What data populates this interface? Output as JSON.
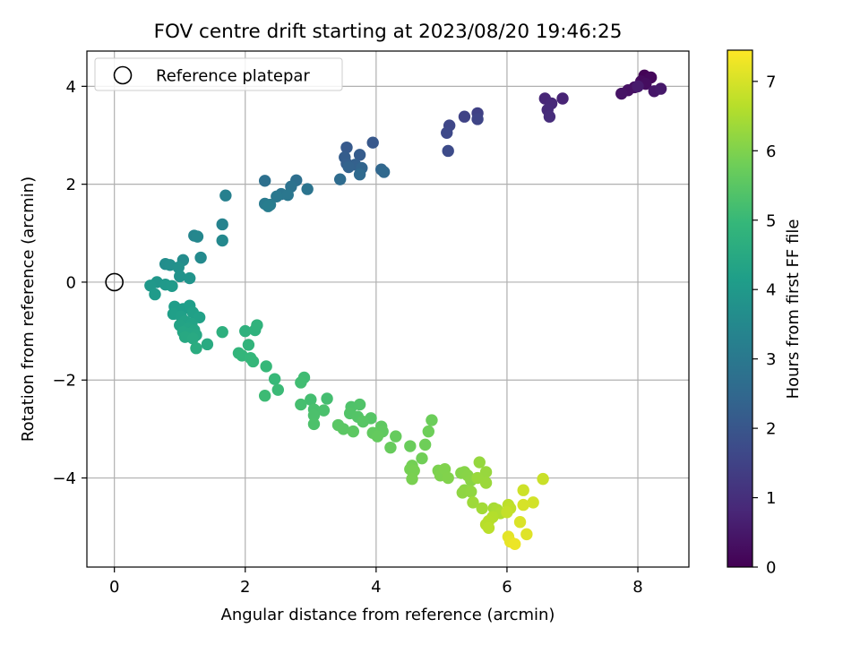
{
  "chart_data": {
    "type": "scatter",
    "title": "FOV centre drift starting at 2023/08/20 19:46:25",
    "xlabel": "Angular distance from reference (arcmin)",
    "ylabel": "Rotation from reference (arcmin)",
    "xlim": [
      -0.42,
      8.78
    ],
    "ylim": [
      -5.82,
      4.72
    ],
    "xticks": [
      0,
      2,
      4,
      6,
      8
    ],
    "yticks": [
      4,
      2,
      0,
      -2,
      -4
    ],
    "xtick_labels": [
      "0",
      "2",
      "4",
      "6",
      "8"
    ],
    "ytick_labels": [
      "4",
      "2",
      "0",
      "−2",
      "−4"
    ],
    "grid": true,
    "legend": {
      "position": "top-left",
      "entries": [
        "Reference platepar"
      ]
    },
    "reference_point": {
      "x": 0,
      "y": 0
    },
    "colorbar": {
      "label": "Hours from first FF file",
      "colormap": "viridis",
      "range": [
        0,
        7.45
      ],
      "ticks": [
        0,
        1,
        2,
        3,
        4,
        5,
        6,
        7
      ],
      "tick_labels": [
        "0",
        "1",
        "2",
        "3",
        "4",
        "5",
        "6",
        "7"
      ]
    },
    "colormap_stops": [
      "#440154",
      "#482878",
      "#3e4989",
      "#31688e",
      "#26828e",
      "#1f9e89",
      "#35b779",
      "#6ece58",
      "#b5de2b",
      "#fde725"
    ],
    "points": [
      {
        "x": 8.1,
        "y": 4.22,
        "h": 0.05
      },
      {
        "x": 8.15,
        "y": 4.15,
        "h": 0.1
      },
      {
        "x": 8.2,
        "y": 4.18,
        "h": 0.15
      },
      {
        "x": 8.05,
        "y": 4.1,
        "h": 0.2
      },
      {
        "x": 8.12,
        "y": 4.05,
        "h": 0.25
      },
      {
        "x": 7.95,
        "y": 3.98,
        "h": 0.3
      },
      {
        "x": 7.85,
        "y": 3.92,
        "h": 0.35
      },
      {
        "x": 7.75,
        "y": 3.85,
        "h": 0.4
      },
      {
        "x": 8.25,
        "y": 3.9,
        "h": 0.45
      },
      {
        "x": 8.35,
        "y": 3.95,
        "h": 0.5
      },
      {
        "x": 8.0,
        "y": 4.0,
        "h": 0.55
      },
      {
        "x": 6.85,
        "y": 3.75,
        "h": 0.75
      },
      {
        "x": 6.58,
        "y": 3.75,
        "h": 0.8
      },
      {
        "x": 6.68,
        "y": 3.65,
        "h": 0.85
      },
      {
        "x": 6.62,
        "y": 3.52,
        "h": 0.9
      },
      {
        "x": 6.65,
        "y": 3.38,
        "h": 0.95
      },
      {
        "x": 5.55,
        "y": 3.45,
        "h": 1.45
      },
      {
        "x": 5.35,
        "y": 3.38,
        "h": 1.5
      },
      {
        "x": 5.55,
        "y": 3.33,
        "h": 1.55
      },
      {
        "x": 5.12,
        "y": 3.2,
        "h": 1.6
      },
      {
        "x": 5.08,
        "y": 3.05,
        "h": 1.65
      },
      {
        "x": 5.1,
        "y": 2.68,
        "h": 1.7
      },
      {
        "x": 3.95,
        "y": 2.85,
        "h": 2.05
      },
      {
        "x": 3.55,
        "y": 2.75,
        "h": 2.1
      },
      {
        "x": 3.75,
        "y": 2.6,
        "h": 2.15
      },
      {
        "x": 3.52,
        "y": 2.55,
        "h": 2.2
      },
      {
        "x": 3.55,
        "y": 2.42,
        "h": 2.25
      },
      {
        "x": 3.68,
        "y": 2.4,
        "h": 2.3
      },
      {
        "x": 3.58,
        "y": 2.35,
        "h": 2.35
      },
      {
        "x": 3.78,
        "y": 2.33,
        "h": 2.4
      },
      {
        "x": 4.08,
        "y": 2.3,
        "h": 2.45
      },
      {
        "x": 4.12,
        "y": 2.25,
        "h": 2.5
      },
      {
        "x": 3.75,
        "y": 2.2,
        "h": 2.55
      },
      {
        "x": 3.45,
        "y": 2.1,
        "h": 2.6
      },
      {
        "x": 2.78,
        "y": 2.08,
        "h": 2.7
      },
      {
        "x": 2.3,
        "y": 2.07,
        "h": 2.75
      },
      {
        "x": 2.7,
        "y": 1.95,
        "h": 2.8
      },
      {
        "x": 2.95,
        "y": 1.9,
        "h": 2.85
      },
      {
        "x": 2.55,
        "y": 1.8,
        "h": 2.9
      },
      {
        "x": 2.65,
        "y": 1.78,
        "h": 2.95
      },
      {
        "x": 2.48,
        "y": 1.75,
        "h": 3.0
      },
      {
        "x": 2.3,
        "y": 1.6,
        "h": 3.05
      },
      {
        "x": 2.38,
        "y": 1.58,
        "h": 3.1
      },
      {
        "x": 2.35,
        "y": 1.55,
        "h": 3.15
      },
      {
        "x": 1.7,
        "y": 1.77,
        "h": 3.25
      },
      {
        "x": 1.65,
        "y": 1.18,
        "h": 3.35
      },
      {
        "x": 1.22,
        "y": 0.95,
        "h": 3.4
      },
      {
        "x": 1.27,
        "y": 0.93,
        "h": 3.45
      },
      {
        "x": 1.65,
        "y": 0.85,
        "h": 3.5
      },
      {
        "x": 1.32,
        "y": 0.5,
        "h": 3.55
      },
      {
        "x": 1.05,
        "y": 0.45,
        "h": 3.6
      },
      {
        "x": 0.78,
        "y": 0.37,
        "h": 3.65
      },
      {
        "x": 0.85,
        "y": 0.35,
        "h": 3.7
      },
      {
        "x": 0.98,
        "y": 0.3,
        "h": 3.75
      },
      {
        "x": 1.0,
        "y": 0.12,
        "h": 3.8
      },
      {
        "x": 1.15,
        "y": 0.08,
        "h": 3.85
      },
      {
        "x": 0.65,
        "y": 0.0,
        "h": 3.9
      },
      {
        "x": 0.55,
        "y": -0.07,
        "h": 3.95
      },
      {
        "x": 0.78,
        "y": -0.05,
        "h": 4.0
      },
      {
        "x": 0.88,
        "y": -0.08,
        "h": 4.02
      },
      {
        "x": 0.62,
        "y": -0.25,
        "h": 4.05
      },
      {
        "x": 0.92,
        "y": -0.5,
        "h": 4.1
      },
      {
        "x": 1.05,
        "y": -0.55,
        "h": 4.12
      },
      {
        "x": 1.15,
        "y": -0.48,
        "h": 4.15
      },
      {
        "x": 0.9,
        "y": -0.65,
        "h": 4.18
      },
      {
        "x": 1.02,
        "y": -0.7,
        "h": 4.2
      },
      {
        "x": 1.2,
        "y": -0.62,
        "h": 4.22
      },
      {
        "x": 1.3,
        "y": -0.72,
        "h": 4.25
      },
      {
        "x": 1.08,
        "y": -0.8,
        "h": 4.28
      },
      {
        "x": 1.18,
        "y": -0.85,
        "h": 4.3
      },
      {
        "x": 1.0,
        "y": -0.88,
        "h": 4.32
      },
      {
        "x": 1.12,
        "y": -0.95,
        "h": 4.35
      },
      {
        "x": 1.22,
        "y": -0.98,
        "h": 4.38
      },
      {
        "x": 1.05,
        "y": -1.02,
        "h": 4.4
      },
      {
        "x": 1.15,
        "y": -1.05,
        "h": 4.42
      },
      {
        "x": 1.25,
        "y": -1.08,
        "h": 4.45
      },
      {
        "x": 1.08,
        "y": -1.12,
        "h": 4.48
      },
      {
        "x": 1.2,
        "y": -1.15,
        "h": 4.5
      },
      {
        "x": 1.42,
        "y": -1.27,
        "h": 4.55
      },
      {
        "x": 1.25,
        "y": -1.35,
        "h": 4.6
      },
      {
        "x": 1.65,
        "y": -1.02,
        "h": 4.7
      },
      {
        "x": 2.0,
        "y": -1.0,
        "h": 4.75
      },
      {
        "x": 2.15,
        "y": -0.98,
        "h": 4.78
      },
      {
        "x": 2.18,
        "y": -0.88,
        "h": 4.8
      },
      {
        "x": 2.05,
        "y": -1.28,
        "h": 4.85
      },
      {
        "x": 1.9,
        "y": -1.45,
        "h": 4.88
      },
      {
        "x": 1.95,
        "y": -1.5,
        "h": 4.9
      },
      {
        "x": 2.08,
        "y": -1.55,
        "h": 4.92
      },
      {
        "x": 2.12,
        "y": -1.62,
        "h": 4.95
      },
      {
        "x": 2.32,
        "y": -1.72,
        "h": 4.98
      },
      {
        "x": 2.45,
        "y": -1.98,
        "h": 5.0
      },
      {
        "x": 2.5,
        "y": -2.2,
        "h": 5.05
      },
      {
        "x": 2.3,
        "y": -2.32,
        "h": 5.08
      },
      {
        "x": 2.9,
        "y": -1.95,
        "h": 5.12
      },
      {
        "x": 2.85,
        "y": -2.05,
        "h": 5.15
      },
      {
        "x": 3.0,
        "y": -2.4,
        "h": 5.18
      },
      {
        "x": 3.25,
        "y": -2.38,
        "h": 5.2
      },
      {
        "x": 2.85,
        "y": -2.5,
        "h": 5.22
      },
      {
        "x": 3.05,
        "y": -2.6,
        "h": 5.25
      },
      {
        "x": 3.2,
        "y": -2.62,
        "h": 5.28
      },
      {
        "x": 3.05,
        "y": -2.72,
        "h": 5.3
      },
      {
        "x": 3.05,
        "y": -2.9,
        "h": 5.32
      },
      {
        "x": 3.62,
        "y": -2.55,
        "h": 5.35
      },
      {
        "x": 3.75,
        "y": -2.5,
        "h": 5.38
      },
      {
        "x": 3.6,
        "y": -2.68,
        "h": 5.4
      },
      {
        "x": 3.72,
        "y": -2.75,
        "h": 5.42
      },
      {
        "x": 3.92,
        "y": -2.78,
        "h": 5.45
      },
      {
        "x": 3.8,
        "y": -2.85,
        "h": 5.48
      },
      {
        "x": 3.42,
        "y": -2.92,
        "h": 5.5
      },
      {
        "x": 3.5,
        "y": -3.0,
        "h": 5.52
      },
      {
        "x": 3.65,
        "y": -3.05,
        "h": 5.55
      },
      {
        "x": 4.08,
        "y": -2.95,
        "h": 5.58
      },
      {
        "x": 4.1,
        "y": -3.05,
        "h": 5.6
      },
      {
        "x": 3.95,
        "y": -3.08,
        "h": 5.62
      },
      {
        "x": 4.02,
        "y": -3.15,
        "h": 5.65
      },
      {
        "x": 4.3,
        "y": -3.15,
        "h": 5.68
      },
      {
        "x": 4.22,
        "y": -3.38,
        "h": 5.7
      },
      {
        "x": 4.52,
        "y": -3.35,
        "h": 5.72
      },
      {
        "x": 4.85,
        "y": -2.82,
        "h": 5.75
      },
      {
        "x": 4.8,
        "y": -3.05,
        "h": 5.78
      },
      {
        "x": 4.75,
        "y": -3.32,
        "h": 5.8
      },
      {
        "x": 4.7,
        "y": -3.6,
        "h": 5.82
      },
      {
        "x": 4.55,
        "y": -3.75,
        "h": 5.85
      },
      {
        "x": 4.52,
        "y": -3.82,
        "h": 5.88
      },
      {
        "x": 4.58,
        "y": -3.85,
        "h": 5.9
      },
      {
        "x": 4.55,
        "y": -4.02,
        "h": 5.92
      },
      {
        "x": 4.95,
        "y": -3.85,
        "h": 5.95
      },
      {
        "x": 4.98,
        "y": -3.95,
        "h": 5.98
      },
      {
        "x": 5.05,
        "y": -3.82,
        "h": 6.0
      },
      {
        "x": 5.1,
        "y": -4.0,
        "h": 6.02
      },
      {
        "x": 5.3,
        "y": -3.9,
        "h": 6.05
      },
      {
        "x": 5.35,
        "y": -3.88,
        "h": 6.08
      },
      {
        "x": 5.4,
        "y": -3.95,
        "h": 6.1
      },
      {
        "x": 5.45,
        "y": -4.05,
        "h": 6.12
      },
      {
        "x": 5.35,
        "y": -4.25,
        "h": 6.15
      },
      {
        "x": 5.32,
        "y": -4.3,
        "h": 6.18
      },
      {
        "x": 5.45,
        "y": -4.28,
        "h": 6.2
      },
      {
        "x": 5.58,
        "y": -3.68,
        "h": 6.25
      },
      {
        "x": 5.68,
        "y": -3.88,
        "h": 6.28
      },
      {
        "x": 5.55,
        "y": -4.0,
        "h": 6.3
      },
      {
        "x": 5.68,
        "y": -4.1,
        "h": 6.32
      },
      {
        "x": 5.48,
        "y": -4.5,
        "h": 6.35
      },
      {
        "x": 5.62,
        "y": -4.62,
        "h": 6.4
      },
      {
        "x": 5.8,
        "y": -4.62,
        "h": 6.45
      },
      {
        "x": 5.85,
        "y": -4.65,
        "h": 6.5
      },
      {
        "x": 5.9,
        "y": -4.72,
        "h": 6.55
      },
      {
        "x": 5.78,
        "y": -4.8,
        "h": 6.6
      },
      {
        "x": 5.72,
        "y": -4.88,
        "h": 6.62
      },
      {
        "x": 5.68,
        "y": -4.95,
        "h": 6.65
      },
      {
        "x": 5.72,
        "y": -5.02,
        "h": 6.68
      },
      {
        "x": 6.02,
        "y": -4.55,
        "h": 6.7
      },
      {
        "x": 6.05,
        "y": -4.62,
        "h": 6.75
      },
      {
        "x": 6.0,
        "y": -4.7,
        "h": 6.8
      },
      {
        "x": 6.55,
        "y": -4.02,
        "h": 6.85
      },
      {
        "x": 6.25,
        "y": -4.25,
        "h": 6.9
      },
      {
        "x": 6.4,
        "y": -4.5,
        "h": 6.95
      },
      {
        "x": 6.25,
        "y": -4.55,
        "h": 7.0
      },
      {
        "x": 6.2,
        "y": -4.9,
        "h": 7.05
      },
      {
        "x": 6.3,
        "y": -5.15,
        "h": 7.1
      },
      {
        "x": 6.02,
        "y": -5.2,
        "h": 7.15
      },
      {
        "x": 6.05,
        "y": -5.3,
        "h": 7.2
      },
      {
        "x": 6.12,
        "y": -5.35,
        "h": 7.25
      }
    ]
  }
}
